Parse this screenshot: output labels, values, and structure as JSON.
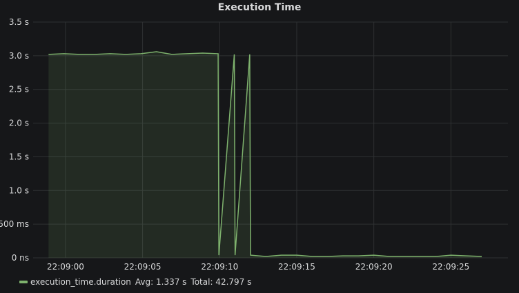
{
  "panel": {
    "title": "Execution Time"
  },
  "chart_data": {
    "type": "area",
    "title": "Execution Time",
    "xlabel": "",
    "ylabel": "",
    "grid": true,
    "ylim": [
      0,
      3.5
    ],
    "yticks": [
      {
        "value": 3.5,
        "label": "3.5 s"
      },
      {
        "value": 3.0,
        "label": "3.0 s"
      },
      {
        "value": 2.5,
        "label": "2.5 s"
      },
      {
        "value": 2.0,
        "label": "2.0 s"
      },
      {
        "value": 1.5,
        "label": "1.5 s"
      },
      {
        "value": 1.0,
        "label": "1.0 s"
      },
      {
        "value": 0.5,
        "label": "500 ms"
      },
      {
        "value": 0.0,
        "label": "0 ns"
      }
    ],
    "xlim": [
      "22:08:57.9",
      "22:09:28.7"
    ],
    "xticks": [
      "22:09:00",
      "22:09:05",
      "22:09:10",
      "22:09:15",
      "22:09:20",
      "22:09:25"
    ],
    "series": [
      {
        "name": "execution_time.duration",
        "color": "#7eb26d",
        "stats": {
          "avg": "Avg: 1.337 s",
          "total": "Total: 42.797 s"
        },
        "points": [
          {
            "x": "22:08:58.9",
            "y": 3.02
          },
          {
            "x": "22:08:59.9",
            "y": 3.03
          },
          {
            "x": "22:09:00.9",
            "y": 3.02
          },
          {
            "x": "22:09:01.9",
            "y": 3.02
          },
          {
            "x": "22:09:02.9",
            "y": 3.03
          },
          {
            "x": "22:09:03.9",
            "y": 3.02
          },
          {
            "x": "22:09:04.9",
            "y": 3.03
          },
          {
            "x": "22:09:05.9",
            "y": 3.06
          },
          {
            "x": "22:09:06.9",
            "y": 3.02
          },
          {
            "x": "22:09:07.9",
            "y": 3.03
          },
          {
            "x": "22:09:08.9",
            "y": 3.04
          },
          {
            "x": "22:09:09.9",
            "y": 3.03
          },
          {
            "x": "22:09:09.95",
            "y": 0.04
          },
          {
            "x": "22:09:10.95",
            "y": 3.02
          },
          {
            "x": "22:09:11.0",
            "y": 0.04
          },
          {
            "x": "22:09:11.95",
            "y": 3.02
          },
          {
            "x": "22:09:12.0",
            "y": 0.04
          },
          {
            "x": "22:09:13.0",
            "y": 0.02
          },
          {
            "x": "22:09:14.0",
            "y": 0.04
          },
          {
            "x": "22:09:15.0",
            "y": 0.04
          },
          {
            "x": "22:09:16.0",
            "y": 0.02
          },
          {
            "x": "22:09:17.0",
            "y": 0.02
          },
          {
            "x": "22:09:18.0",
            "y": 0.03
          },
          {
            "x": "22:09:19.0",
            "y": 0.03
          },
          {
            "x": "22:09:20.0",
            "y": 0.04
          },
          {
            "x": "22:09:21.0",
            "y": 0.02
          },
          {
            "x": "22:09:22.0",
            "y": 0.02
          },
          {
            "x": "22:09:23.0",
            "y": 0.02
          },
          {
            "x": "22:09:24.0",
            "y": 0.02
          },
          {
            "x": "22:09:25.0",
            "y": 0.04
          },
          {
            "x": "22:09:26.0",
            "y": 0.03
          },
          {
            "x": "22:09:27.0",
            "y": 0.02
          }
        ]
      }
    ]
  }
}
